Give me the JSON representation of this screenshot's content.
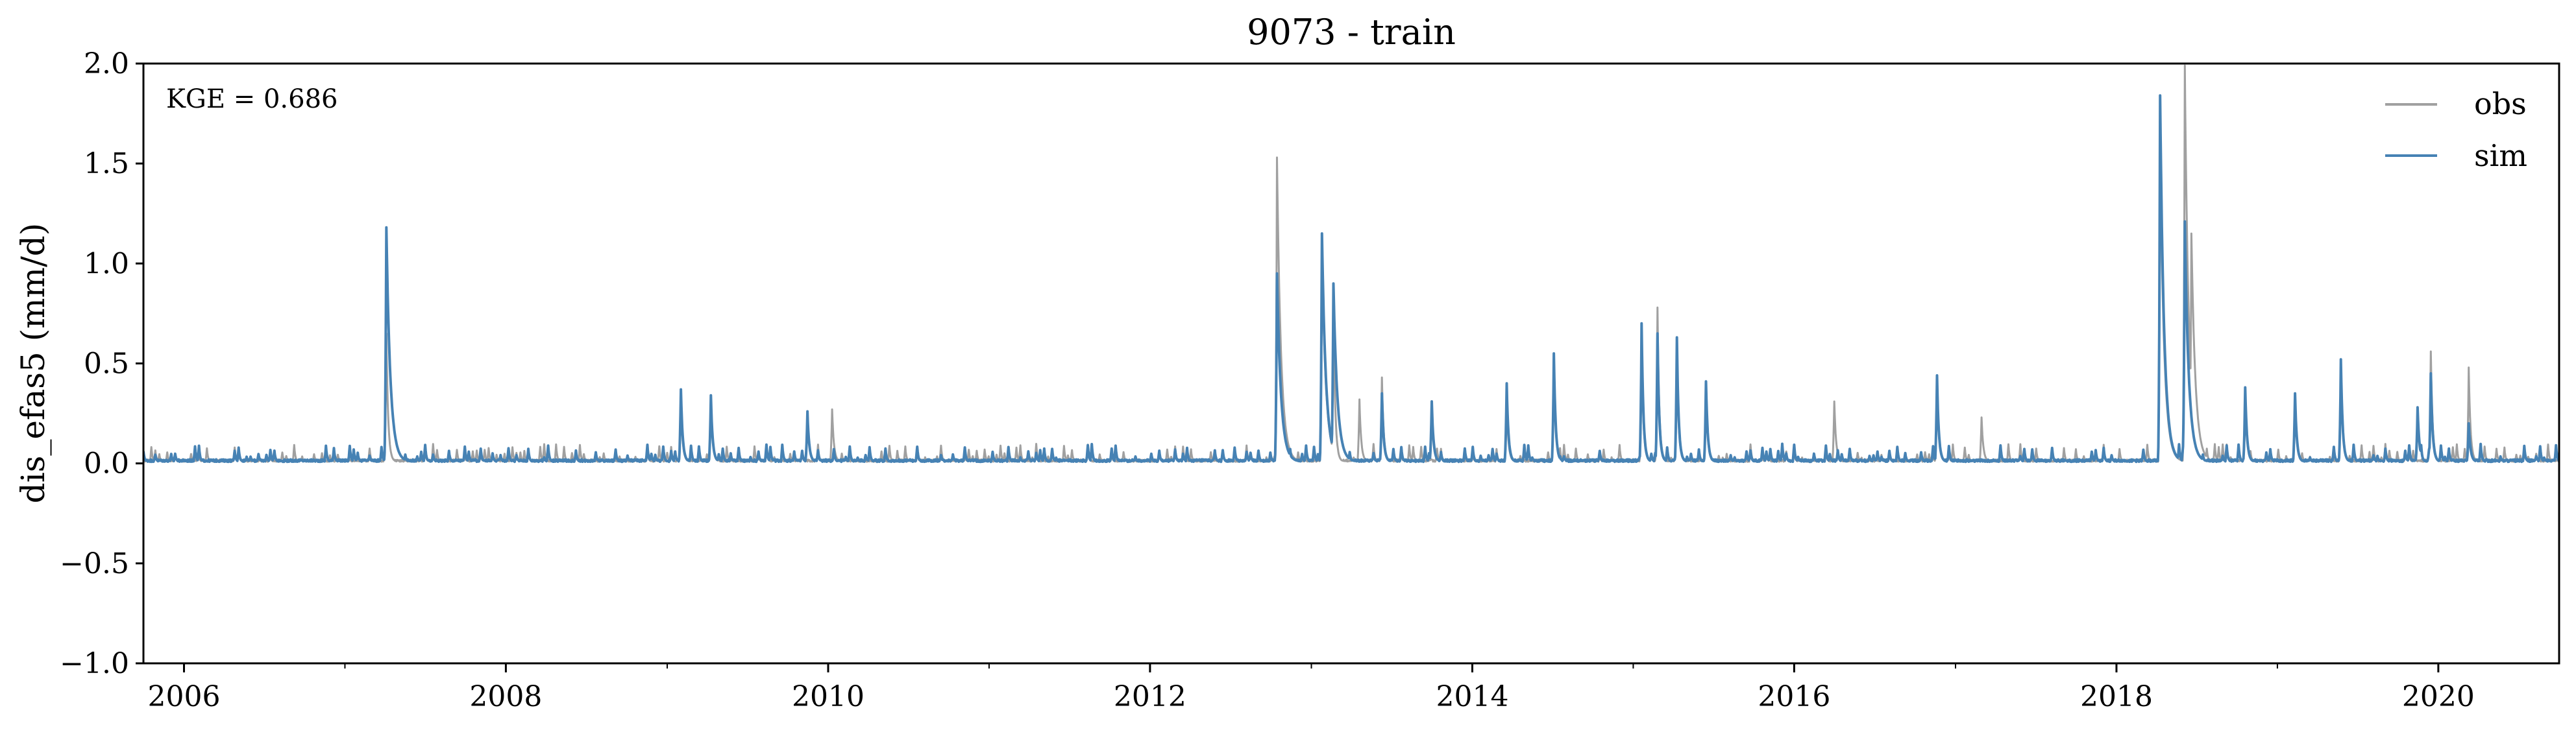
{
  "chart_data": {
    "type": "line",
    "title": "9073 - train",
    "xlabel": "",
    "ylabel": "dis_efas5 (mm/d)",
    "xlim": [
      "2005-10-01",
      "2020-10-01"
    ],
    "ylim": [
      -1.0,
      2.0
    ],
    "x_ticks": [
      "2006",
      "2008",
      "2010",
      "2012",
      "2014",
      "2016",
      "2018",
      "2020"
    ],
    "y_ticks": [
      "−1.0",
      "−0.5",
      "0.0",
      "0.5",
      "1.0",
      "1.5",
      "2.0"
    ],
    "grid": false,
    "legend_position": "top-right",
    "annotation": "KGE = 0.686",
    "series": [
      {
        "name": "obs",
        "color": "#a0a0a0",
        "peaks": [
          {
            "date": "2007-04-05",
            "value": 0.65
          },
          {
            "date": "2009-02-01",
            "value": 0.3
          },
          {
            "date": "2009-04-10",
            "value": 0.3
          },
          {
            "date": "2010-01-10",
            "value": 0.27
          },
          {
            "date": "2012-10-15",
            "value": 1.53
          },
          {
            "date": "2013-01-25",
            "value": 1.05
          },
          {
            "date": "2013-02-20",
            "value": 0.8
          },
          {
            "date": "2013-04-20",
            "value": 0.32
          },
          {
            "date": "2013-06-10",
            "value": 0.43
          },
          {
            "date": "2014-03-20",
            "value": 0.3
          },
          {
            "date": "2014-07-05",
            "value": 0.5
          },
          {
            "date": "2015-01-20",
            "value": 0.6
          },
          {
            "date": "2015-02-25",
            "value": 0.78
          },
          {
            "date": "2015-04-10",
            "value": 0.55
          },
          {
            "date": "2015-06-15",
            "value": 0.37
          },
          {
            "date": "2016-04-01",
            "value": 0.31
          },
          {
            "date": "2016-11-20",
            "value": 0.4
          },
          {
            "date": "2017-03-01",
            "value": 0.23
          },
          {
            "date": "2018-04-10",
            "value": 1.6
          },
          {
            "date": "2018-06-05",
            "value": 1.99
          },
          {
            "date": "2018-06-20",
            "value": 1.15
          },
          {
            "date": "2018-10-20",
            "value": 0.35
          },
          {
            "date": "2019-02-10",
            "value": 0.32
          },
          {
            "date": "2019-05-25",
            "value": 0.5
          },
          {
            "date": "2019-12-15",
            "value": 0.56
          },
          {
            "date": "2020-03-10",
            "value": 0.48
          }
        ]
      },
      {
        "name": "sim",
        "color": "#4682b4",
        "peaks": [
          {
            "date": "2007-04-05",
            "value": 1.18
          },
          {
            "date": "2009-02-01",
            "value": 0.37
          },
          {
            "date": "2009-04-10",
            "value": 0.34
          },
          {
            "date": "2009-11-15",
            "value": 0.26
          },
          {
            "date": "2012-10-15",
            "value": 0.95
          },
          {
            "date": "2013-01-25",
            "value": 1.15
          },
          {
            "date": "2013-02-20",
            "value": 0.9
          },
          {
            "date": "2013-06-10",
            "value": 0.35
          },
          {
            "date": "2013-10-01",
            "value": 0.31
          },
          {
            "date": "2014-03-20",
            "value": 0.4
          },
          {
            "date": "2014-07-05",
            "value": 0.55
          },
          {
            "date": "2015-01-20",
            "value": 0.7
          },
          {
            "date": "2015-02-25",
            "value": 0.65
          },
          {
            "date": "2015-04-10",
            "value": 0.63
          },
          {
            "date": "2015-06-15",
            "value": 0.41
          },
          {
            "date": "2016-11-20",
            "value": 0.44
          },
          {
            "date": "2018-04-10",
            "value": 1.84
          },
          {
            "date": "2018-06-05",
            "value": 1.21
          },
          {
            "date": "2018-10-20",
            "value": 0.38
          },
          {
            "date": "2019-02-10",
            "value": 0.35
          },
          {
            "date": "2019-05-25",
            "value": 0.52
          },
          {
            "date": "2019-11-15",
            "value": 0.28
          },
          {
            "date": "2019-12-15",
            "value": 0.45
          },
          {
            "date": "2020-03-10",
            "value": 0.2
          }
        ]
      }
    ]
  }
}
